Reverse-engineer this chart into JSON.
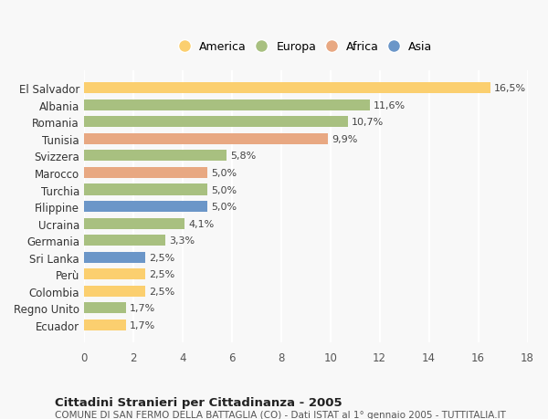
{
  "categories": [
    "El Salvador",
    "Albania",
    "Romania",
    "Tunisia",
    "Svizzera",
    "Marocco",
    "Turchia",
    "Filippine",
    "Ucraina",
    "Germania",
    "Sri Lanka",
    "Perù",
    "Colombia",
    "Regno Unito",
    "Ecuador"
  ],
  "values": [
    16.5,
    11.6,
    10.7,
    9.9,
    5.8,
    5.0,
    5.0,
    5.0,
    4.1,
    3.3,
    2.5,
    2.5,
    2.5,
    1.7,
    1.7
  ],
  "labels": [
    "16,5%",
    "11,6%",
    "10,7%",
    "9,9%",
    "5,8%",
    "5,0%",
    "5,0%",
    "5,0%",
    "4,1%",
    "3,3%",
    "2,5%",
    "2,5%",
    "2,5%",
    "1,7%",
    "1,7%"
  ],
  "colors": [
    "#FBCF6F",
    "#A8C080",
    "#A8C080",
    "#E8A882",
    "#A8C080",
    "#E8A882",
    "#A8C080",
    "#6B96C8",
    "#A8C080",
    "#A8C080",
    "#6B96C8",
    "#FBCF6F",
    "#FBCF6F",
    "#A8C080",
    "#FBCF6F"
  ],
  "continents": [
    "America",
    "Europa",
    "Africa",
    "Asia"
  ],
  "legend_colors": [
    "#FBCF6F",
    "#A8C080",
    "#E8A882",
    "#6B96C8"
  ],
  "xlim": [
    0,
    18
  ],
  "xticks": [
    0,
    2,
    4,
    6,
    8,
    10,
    12,
    14,
    16,
    18
  ],
  "title": "Cittadini Stranieri per Cittadinanza - 2005",
  "subtitle": "COMUNE DI SAN FERMO DELLA BATTAGLIA (CO) - Dati ISTAT al 1° gennaio 2005 - TUTTITALIA.IT",
  "background_color": "#F8F8F8",
  "grid_color": "#FFFFFF",
  "bar_height": 0.65
}
